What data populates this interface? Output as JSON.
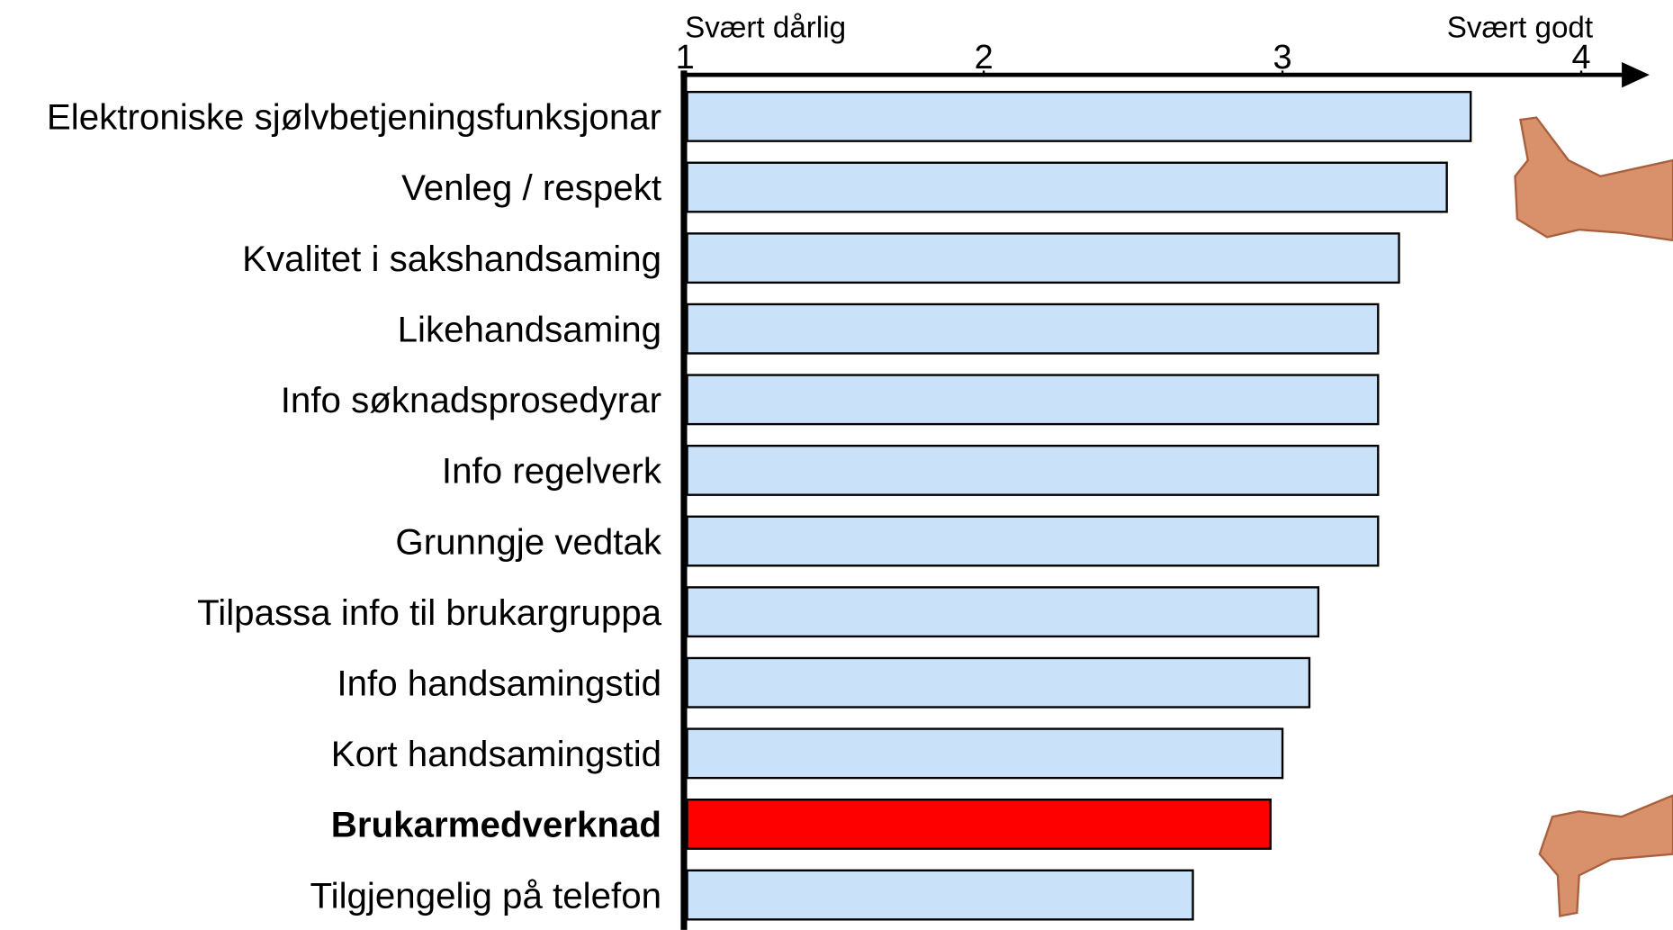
{
  "chart_data": {
    "type": "bar",
    "orientation": "horizontal",
    "annotations": [
      "Svært dårlig",
      "Svært godt"
    ],
    "categories": [
      "Elektroniske sjølvbetjeningsfunksjonar",
      "Venleg / respekt",
      "Kvalitet i sakshandsaming",
      "Likehandsaming",
      "Info søknadsprosedyrar",
      "Info regelverk",
      "Grunngje vedtak",
      "Tilpassa info til brukargruppa",
      "Info handsamingstid",
      "Kort handsamingstid",
      "Brukarmedverknad",
      "Tilgjengelig på telefon"
    ],
    "values": [
      3.63,
      3.55,
      3.39,
      3.32,
      3.32,
      3.32,
      3.32,
      3.12,
      3.09,
      3.0,
      2.96,
      2.7
    ],
    "color": "#c9e1f9",
    "colors": [
      "#c9e1f9",
      "#c9e1f9",
      "#c9e1f9",
      "#c9e1f9",
      "#c9e1f9",
      "#c9e1f9",
      "#c9e1f9",
      "#c9e1f9",
      "#c9e1f9",
      "#c9e1f9",
      "#ff0000",
      "#c9e1f9"
    ],
    "xlim": [
      1,
      4
    ],
    "xticks": [
      1,
      2,
      3,
      4
    ],
    "grid": false
  }
}
